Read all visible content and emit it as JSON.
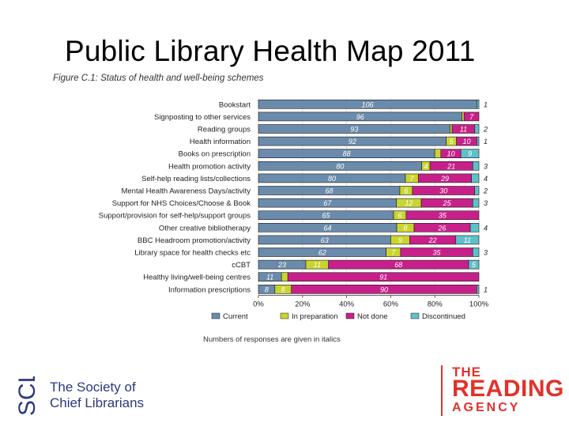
{
  "slide": {
    "title": "Public Library Health Map 2011"
  },
  "chart_data": {
    "type": "bar",
    "orientation": "horizontal",
    "stacked": "percent",
    "title": "Figure C.1: Status of health and well-being schemes",
    "note": "Numbers of responses are given in italics",
    "categories": [
      "Bookstart",
      "Signposting to other services",
      "Reading groups",
      "Health information",
      "Books on prescription",
      "Health promotion activity",
      "Self-help reading lists/collections",
      "Mental Health Awareness Days/activity",
      "Support for NHS Choices/Choose & Book",
      "Support/provision for self-help/support groups",
      "Other creative bibliotherapy",
      "BBC Headroom promotion/activity",
      "Library space for health checks etc",
      "cCBT",
      "Healthy living/well-being centres",
      "Information prescriptions"
    ],
    "series": [
      {
        "name": "Current",
        "color": "#6a8bab",
        "values": [
          106,
          96,
          93,
          92,
          88,
          80,
          80,
          68,
          67,
          65,
          64,
          63,
          62,
          23,
          11,
          8
        ]
      },
      {
        "name": "In preparation",
        "color": "#c9d52e",
        "values": [
          0,
          1,
          1,
          5,
          3,
          4,
          7,
          6,
          12,
          6,
          8,
          9,
          7,
          11,
          3,
          8
        ]
      },
      {
        "name": "Not done",
        "color": "#c8208a",
        "values": [
          0,
          7,
          11,
          10,
          10,
          21,
          29,
          30,
          25,
          35,
          26,
          22,
          35,
          68,
          91,
          90
        ]
      },
      {
        "name": "Discontinued",
        "color": "#5fc0c8",
        "values": [
          1,
          0,
          2,
          1,
          9,
          3,
          4,
          2,
          3,
          0,
          4,
          11,
          3,
          5,
          0,
          1
        ]
      }
    ],
    "xaxis": {
      "ticks": [
        "0%",
        "20%",
        "40%",
        "60%",
        "80%",
        "100%"
      ],
      "range": [
        0,
        100
      ]
    },
    "legend_position": "bottom"
  },
  "logos": {
    "scl": {
      "mark": "SCL",
      "line1": "The Society of",
      "line2": "Chief Librarians"
    },
    "reading_agency": {
      "line1": "THE",
      "line2": "READING",
      "line3": "AGENCY"
    }
  }
}
